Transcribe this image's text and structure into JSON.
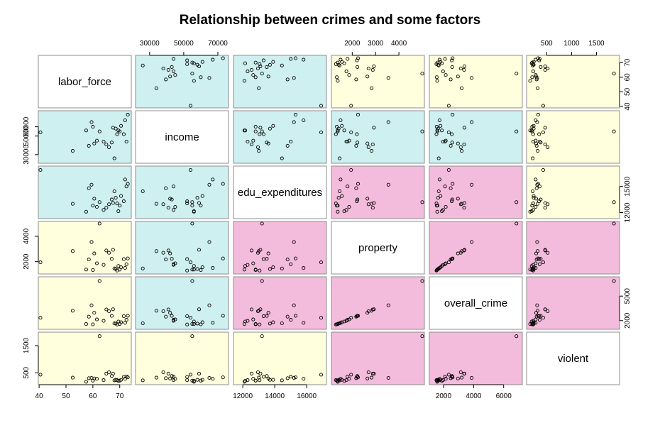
{
  "chart_data": {
    "type": "scatter",
    "title": "Relationship between crimes and some factors",
    "variables": [
      "labor_force",
      "income",
      "edu_expenditures",
      "property",
      "overall_crime",
      "violent"
    ],
    "panel_colors": {
      "high_correlation": "#F4BCDC",
      "medium_correlation": "#CFF0F0",
      "low_correlation": "#FFFFDD",
      "diagonal": "#FFFFFF"
    },
    "panel_color_matrix": [
      [
        null,
        "medium_correlation",
        "medium_correlation",
        "low_correlation",
        "low_correlation",
        "low_correlation"
      ],
      [
        "medium_correlation",
        null,
        "medium_correlation",
        "medium_correlation",
        "medium_correlation",
        "low_correlation"
      ],
      [
        "medium_correlation",
        "medium_correlation",
        null,
        "high_correlation",
        "high_correlation",
        "low_correlation"
      ],
      [
        "low_correlation",
        "medium_correlation",
        "high_correlation",
        null,
        "high_correlation",
        "high_correlation"
      ],
      [
        "low_correlation",
        "medium_correlation",
        "high_correlation",
        "high_correlation",
        null,
        "high_correlation"
      ],
      [
        "low_correlation",
        "low_correlation",
        "low_correlation",
        "high_correlation",
        "high_correlation",
        null
      ]
    ],
    "axis_ranges": {
      "labor_force": [
        40.5,
        73.5
      ],
      "income": [
        23000,
        75000
      ],
      "edu_expenditures": [
        11550,
        17100
      ],
      "property": [
        1200,
        5000
      ],
      "overall_crime": [
        1200,
        7100
      ],
      "violent": [
        140,
        1920
      ]
    },
    "axis_ticks": {
      "labor_force": [
        40,
        50,
        60,
        70
      ],
      "income": [
        30000,
        50000,
        70000
      ],
      "edu_expenditures": [
        12000,
        14000,
        16000
      ],
      "property": [
        2000,
        3000,
        4000
      ],
      "overall_crime": [
        2000,
        4000,
        6000
      ],
      "violent": [
        500,
        1000,
        1500
      ]
    },
    "tick_sides": {
      "labor_force": "bottom",
      "income": "top",
      "edu_expenditures": "bottom",
      "property": "top",
      "overall_crime": "bottom",
      "violent": "top",
      "rows": {
        "labor_force": "right",
        "income": "left",
        "edu_expenditures": "right",
        "property": "left",
        "overall_crime": "right",
        "violent": "left"
      }
    },
    "row_tick_values": {
      "labor_force": [
        40,
        50,
        60,
        70
      ],
      "income": [
        30000,
        50000,
        60000
      ],
      "edu_expenditures": [
        12000,
        15000
      ],
      "property": [
        2000,
        4000
      ],
      "overall_crime": [
        2000,
        5000
      ],
      "violent": [
        500,
        1500
      ]
    },
    "observations": [
      {
        "labor_force": 40.5,
        "income": 54000,
        "edu_expenditures": 16900,
        "property": 1950,
        "overall_crime": 2350,
        "violent": 430
      },
      {
        "labor_force": 52.5,
        "income": 34000,
        "edu_expenditures": 13000,
        "property": 2830,
        "overall_crime": 3210,
        "violent": 320
      },
      {
        "labor_force": 57.5,
        "income": 56000,
        "edu_expenditures": 12100,
        "property": 1380,
        "overall_crime": 1580,
        "violent": 170
      },
      {
        "labor_force": 58.5,
        "income": 39500,
        "edu_expenditures": 14800,
        "property": 2170,
        "overall_crime": 2480,
        "violent": 300
      },
      {
        "labor_force": 59.5,
        "income": 65000,
        "edu_expenditures": 15200,
        "property": 3550,
        "overall_crime": 3870,
        "violent": 310
      },
      {
        "labor_force": 60.0,
        "income": 60000,
        "edu_expenditures": 12800,
        "property": 1340,
        "overall_crime": 1550,
        "violent": 210
      },
      {
        "labor_force": 60.5,
        "income": 42000,
        "edu_expenditures": 13600,
        "property": 2650,
        "overall_crime": 2960,
        "violent": 290
      },
      {
        "labor_force": 61.5,
        "income": 45000,
        "edu_expenditures": 12650,
        "property": 1870,
        "overall_crime": 2150,
        "violent": 280
      },
      {
        "labor_force": 62.5,
        "income": 55000,
        "edu_expenditures": 13200,
        "property": 5000,
        "overall_crime": 6850,
        "violent": 1850
      },
      {
        "labor_force": 64.0,
        "income": 44000,
        "edu_expenditures": 12300,
        "property": 1750,
        "overall_crime": 1970,
        "violent": 230
      },
      {
        "labor_force": 65.0,
        "income": 41000,
        "edu_expenditures": 12550,
        "property": 2880,
        "overall_crime": 3370,
        "violent": 470
      },
      {
        "labor_force": 66.0,
        "income": 38000,
        "edu_expenditures": 12950,
        "property": 2700,
        "overall_crime": 3150,
        "violent": 520
      },
      {
        "labor_force": 67.0,
        "income": 43000,
        "edu_expenditures": 13500,
        "property": 2220,
        "overall_crime": 2580,
        "violent": 380
      },
      {
        "labor_force": 67.5,
        "income": 59000,
        "edu_expenditures": 13100,
        "property": 2930,
        "overall_crime": 3390,
        "violent": 470
      },
      {
        "labor_force": 68.0,
        "income": 26000,
        "edu_expenditures": 14450,
        "property": 1460,
        "overall_crime": 1680,
        "violent": 220
      },
      {
        "labor_force": 68.5,
        "income": 58000,
        "edu_expenditures": 13700,
        "property": 1420,
        "overall_crime": 1640,
        "violent": 240
      },
      {
        "labor_force": 69.0,
        "income": 52000,
        "edu_expenditures": 13050,
        "property": 1300,
        "overall_crime": 1530,
        "violent": 230
      },
      {
        "labor_force": 70.0,
        "income": 55000,
        "edu_expenditures": 12800,
        "property": 1380,
        "overall_crime": 1600,
        "violent": 210
      },
      {
        "labor_force": 70.5,
        "income": 61000,
        "edu_expenditures": 13900,
        "property": 1560,
        "overall_crime": 1800,
        "violent": 240
      },
      {
        "labor_force": 71.5,
        "income": 52000,
        "edu_expenditures": 13300,
        "property": 2200,
        "overall_crime": 2550,
        "violent": 350
      },
      {
        "labor_force": 72.0,
        "income": 67000,
        "edu_expenditures": 15800,
        "property": 1500,
        "overall_crime": 1740,
        "violent": 280
      },
      {
        "labor_force": 72.5,
        "income": 44000,
        "edu_expenditures": 15000,
        "property": 1800,
        "overall_crime": 2100,
        "violent": 360
      },
      {
        "labor_force": 73.0,
        "income": 73000,
        "edu_expenditures": 15300,
        "property": 2250,
        "overall_crime": 2600,
        "violent": 330
      },
      {
        "labor_force": 69.5,
        "income": 56000,
        "edu_expenditures": 12150,
        "property": 1660,
        "overall_crime": 1890,
        "violent": 200
      }
    ]
  }
}
